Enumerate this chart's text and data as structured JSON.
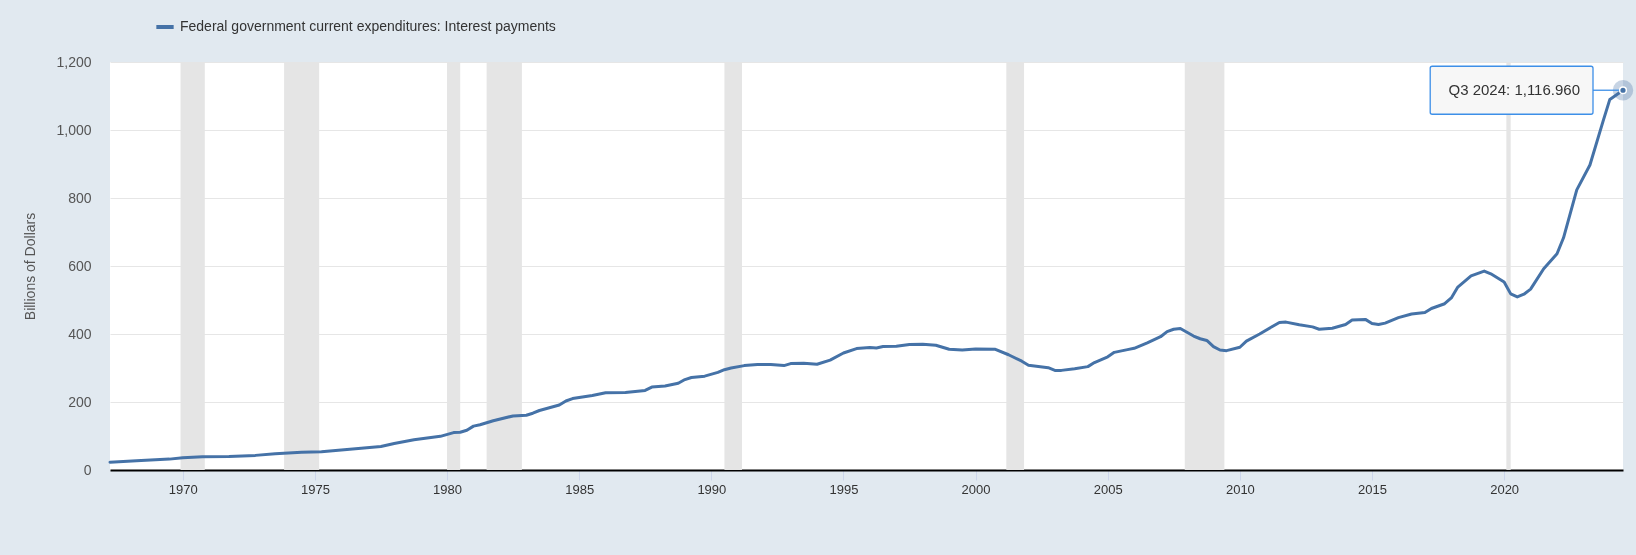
{
  "chart_data": {
    "type": "line",
    "ylabel": "Billions of Dollars",
    "x": [
      "1967-04",
      "1968-04",
      "1969-07",
      "1970-01",
      "1970-10",
      "1971-10",
      "1972-10",
      "1973-07",
      "1974-07",
      "1975-04",
      "1976-01",
      "1976-10",
      "1977-07",
      "1978-01",
      "1978-10",
      "1979-10",
      "1980-04",
      "1980-07",
      "1980-10",
      "1981-01",
      "1981-04",
      "1981-10",
      "1982-07",
      "1983-01",
      "1983-04",
      "1983-07",
      "1984-04",
      "1984-07",
      "1984-10",
      "1985-04",
      "1985-07",
      "1986-01",
      "1986-10",
      "1987-07",
      "1987-10",
      "1988-04",
      "1988-10",
      "1989-01",
      "1989-04",
      "1989-10",
      "1990-04",
      "1990-07",
      "1990-10",
      "1991-04",
      "1991-10",
      "1992-04",
      "1992-10",
      "1993-01",
      "1993-07",
      "1994-01",
      "1994-07",
      "1995-01",
      "1995-07",
      "1996-01",
      "1996-04",
      "1996-07",
      "1997-01",
      "1997-07",
      "1998-01",
      "1998-07",
      "1999-01",
      "1999-07",
      "2000-01",
      "2000-10",
      "2001-04",
      "2001-10",
      "2002-01",
      "2002-10",
      "2003-01",
      "2003-04",
      "2003-10",
      "2004-04",
      "2004-07",
      "2005-01",
      "2005-04",
      "2005-10",
      "2006-01",
      "2006-07",
      "2007-01",
      "2007-04",
      "2007-07",
      "2007-10",
      "2008-04",
      "2008-07",
      "2008-10",
      "2009-01",
      "2009-04",
      "2009-07",
      "2010-01",
      "2010-04",
      "2010-10",
      "2011-04",
      "2011-07",
      "2011-10",
      "2012-04",
      "2012-10",
      "2013-01",
      "2013-07",
      "2014-01",
      "2014-04",
      "2014-10",
      "2015-01",
      "2015-04",
      "2015-07",
      "2016-01",
      "2016-07",
      "2017-01",
      "2017-04",
      "2017-10",
      "2018-01",
      "2018-04",
      "2018-10",
      "2019-04",
      "2019-07",
      "2020-01",
      "2020-04",
      "2020-07",
      "2020-10",
      "2021-01",
      "2021-07",
      "2022-01",
      "2022-04",
      "2022-10",
      "2023-04",
      "2023-10",
      "2024-01",
      "2024-07"
    ],
    "series": [
      {
        "name": "Federal government current expenditures: Interest payments",
        "color": "#4572a7",
        "values": [
          23,
          27,
          32,
          36,
          39,
          40,
          43,
          48,
          52,
          54,
          59,
          64,
          69,
          78,
          89,
          99,
          110,
          111,
          117,
          129,
          133,
          145,
          159,
          161,
          167,
          175,
          191,
          203,
          210,
          216,
          219,
          227,
          228,
          234,
          244,
          247,
          255,
          266,
          272,
          276,
          287,
          295,
          300,
          307,
          310,
          310,
          307,
          313,
          314,
          311,
          323,
          344,
          357,
          360,
          359,
          363,
          364,
          369,
          370,
          367,
          355,
          353,
          356,
          355,
          339,
          320,
          308,
          301,
          293,
          293,
          298,
          304,
          316,
          333,
          346,
          354,
          358,
          374,
          392,
          407,
          414,
          416,
          394,
          386,
          381,
          363,
          353,
          351,
          361,
          379,
          400,
          423,
          434,
          435,
          427,
          421,
          414,
          417,
          428,
          441,
          443,
          431,
          428,
          432,
          448,
          459,
          463,
          475,
          489,
          506,
          538,
          571,
          585,
          577,
          553,
          518,
          509,
          517,
          532,
          592,
          636,
          683,
          824,
          897,
          1027,
          1090,
          1116.96
        ]
      }
    ],
    "xlim": [
      "1967-04",
      "2024-07"
    ],
    "xticks": [
      "1970",
      "1975",
      "1980",
      "1985",
      "1990",
      "1995",
      "2000",
      "2005",
      "2010",
      "2015",
      "2020"
    ],
    "ylim": [
      0,
      1200
    ],
    "yticks": [
      0,
      200,
      400,
      600,
      800,
      {
        "value": 1000,
        "label": "1,000"
      },
      {
        "value": 1200,
        "label": "1,200"
      }
    ],
    "grid": "y",
    "legend": "top left",
    "bands": [
      {
        "axis": "x",
        "from": "1969-12",
        "to": "1970-11",
        "color": "#e5e5e5"
      },
      {
        "axis": "x",
        "from": "1973-11",
        "to": "1975-03",
        "color": "#e5e5e5"
      },
      {
        "axis": "x",
        "from": "1980-01",
        "to": "1980-07",
        "color": "#e5e5e5"
      },
      {
        "axis": "x",
        "from": "1981-07",
        "to": "1982-11",
        "color": "#e5e5e5"
      },
      {
        "axis": "x",
        "from": "1990-07",
        "to": "1991-03",
        "color": "#e5e5e5"
      },
      {
        "axis": "x",
        "from": "2001-03",
        "to": "2001-11",
        "color": "#e5e5e5"
      },
      {
        "axis": "x",
        "from": "2007-12",
        "to": "2009-06",
        "color": "#e5e5e5"
      },
      {
        "axis": "x",
        "from": "2020-02",
        "to": "2020-04",
        "color": "#e5e5e5"
      }
    ],
    "annotations": [
      {
        "text": "Q3 2024: 1,116.960",
        "x": "2024-07",
        "y": 1116.96
      }
    ]
  }
}
